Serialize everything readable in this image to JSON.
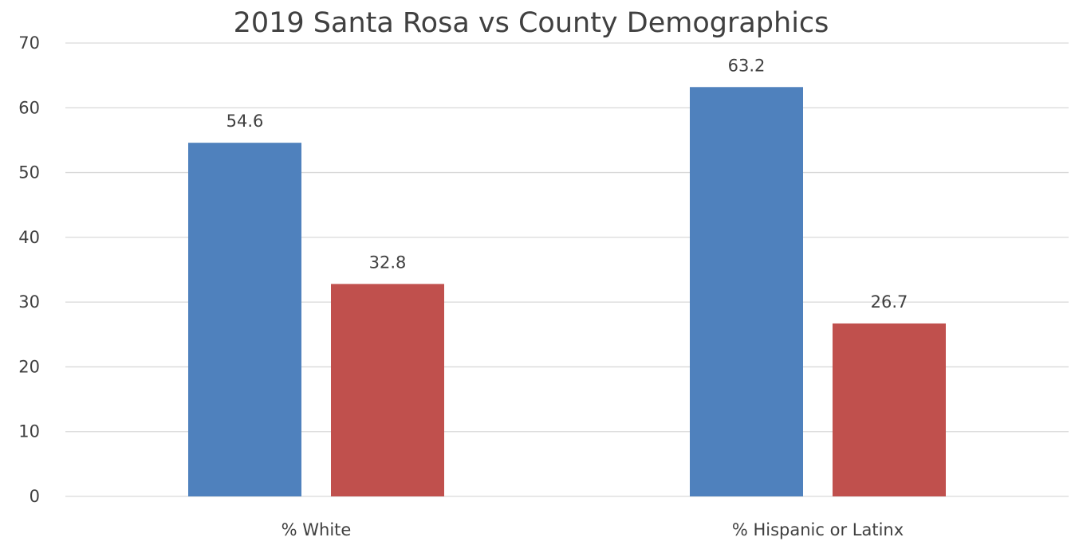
{
  "chart_data": {
    "type": "bar",
    "title": "2019 Santa Rosa vs County Demographics",
    "xlabel": "",
    "ylabel": "",
    "categories": [
      "% White",
      "% Hispanic or Latinx"
    ],
    "series": [
      {
        "values": [
          54.6,
          63.2
        ],
        "color": "#4f81bd"
      },
      {
        "values": [
          32.8,
          26.7
        ],
        "color": "#c0504d"
      }
    ],
    "ylim": [
      0,
      70
    ],
    "yticks": [
      0,
      10,
      20,
      30,
      40,
      50,
      60,
      70
    ],
    "grid": true,
    "legend": "none"
  }
}
